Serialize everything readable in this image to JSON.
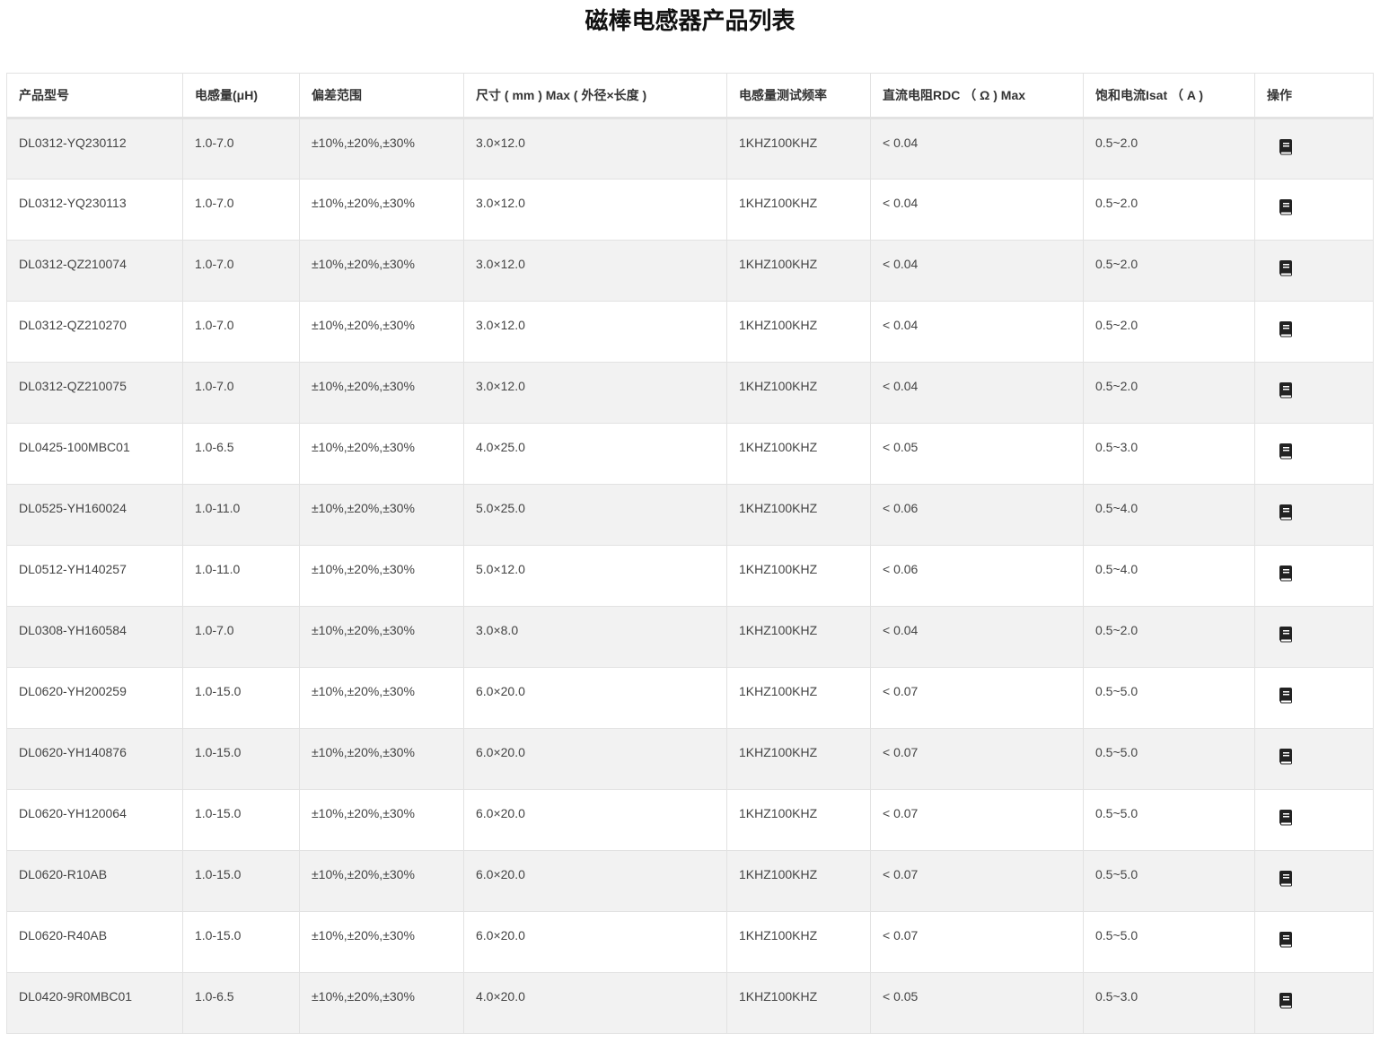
{
  "title": "磁棒电感器产品列表",
  "columns": [
    "产品型号",
    "电感量(μH)",
    "偏差范围",
    "尺寸 ( mm ) Max ( 外径×长度 )",
    "电感量测试频率",
    "直流电阻RDC （ Ω ) Max",
    "饱和电流Isat （ A )",
    "操作"
  ],
  "action_icon": "book-icon",
  "rows": [
    [
      "DL0312-YQ230112",
      "1.0-7.0",
      "±10%,±20%,±30%",
      "3.0×12.0",
      "1KHZ100KHZ",
      "< 0.04",
      "0.5~2.0"
    ],
    [
      "DL0312-YQ230113",
      "1.0-7.0",
      "±10%,±20%,±30%",
      "3.0×12.0",
      "1KHZ100KHZ",
      "< 0.04",
      "0.5~2.0"
    ],
    [
      "DL0312-QZ210074",
      "1.0-7.0",
      "±10%,±20%,±30%",
      "3.0×12.0",
      "1KHZ100KHZ",
      "< 0.04",
      "0.5~2.0"
    ],
    [
      "DL0312-QZ210270",
      "1.0-7.0",
      "±10%,±20%,±30%",
      "3.0×12.0",
      "1KHZ100KHZ",
      "< 0.04",
      "0.5~2.0"
    ],
    [
      "DL0312-QZ210075",
      "1.0-7.0",
      "±10%,±20%,±30%",
      "3.0×12.0",
      "1KHZ100KHZ",
      "< 0.04",
      "0.5~2.0"
    ],
    [
      "DL0425-100MBC01",
      "1.0-6.5",
      "±10%,±20%,±30%",
      "4.0×25.0",
      "1KHZ100KHZ",
      "< 0.05",
      "0.5~3.0"
    ],
    [
      "DL0525-YH160024",
      "1.0-11.0",
      "±10%,±20%,±30%",
      "5.0×25.0",
      "1KHZ100KHZ",
      "< 0.06",
      "0.5~4.0"
    ],
    [
      "DL0512-YH140257",
      "1.0-11.0",
      "±10%,±20%,±30%",
      "5.0×12.0",
      "1KHZ100KHZ",
      "< 0.06",
      "0.5~4.0"
    ],
    [
      "DL0308-YH160584",
      "1.0-7.0",
      "±10%,±20%,±30%",
      "3.0×8.0",
      "1KHZ100KHZ",
      "< 0.04",
      "0.5~2.0"
    ],
    [
      "DL0620-YH200259",
      "1.0-15.0",
      "±10%,±20%,±30%",
      "6.0×20.0",
      "1KHZ100KHZ",
      "< 0.07",
      "0.5~5.0"
    ],
    [
      "DL0620-YH140876",
      "1.0-15.0",
      "±10%,±20%,±30%",
      "6.0×20.0",
      "1KHZ100KHZ",
      "< 0.07",
      "0.5~5.0"
    ],
    [
      "DL0620-YH120064",
      "1.0-15.0",
      "±10%,±20%,±30%",
      "6.0×20.0",
      "1KHZ100KHZ",
      "< 0.07",
      "0.5~5.0"
    ],
    [
      "DL0620-R10AB",
      "1.0-15.0",
      "±10%,±20%,±30%",
      "6.0×20.0",
      "1KHZ100KHZ",
      "< 0.07",
      "0.5~5.0"
    ],
    [
      "DL0620-R40AB",
      "1.0-15.0",
      "±10%,±20%,±30%",
      "6.0×20.0",
      "1KHZ100KHZ",
      "< 0.07",
      "0.5~5.0"
    ],
    [
      "DL0420-9R0MBC01",
      "1.0-6.5",
      "±10%,±20%,±30%",
      "4.0×20.0",
      "1KHZ100KHZ",
      "< 0.05",
      "0.5~3.0"
    ]
  ]
}
